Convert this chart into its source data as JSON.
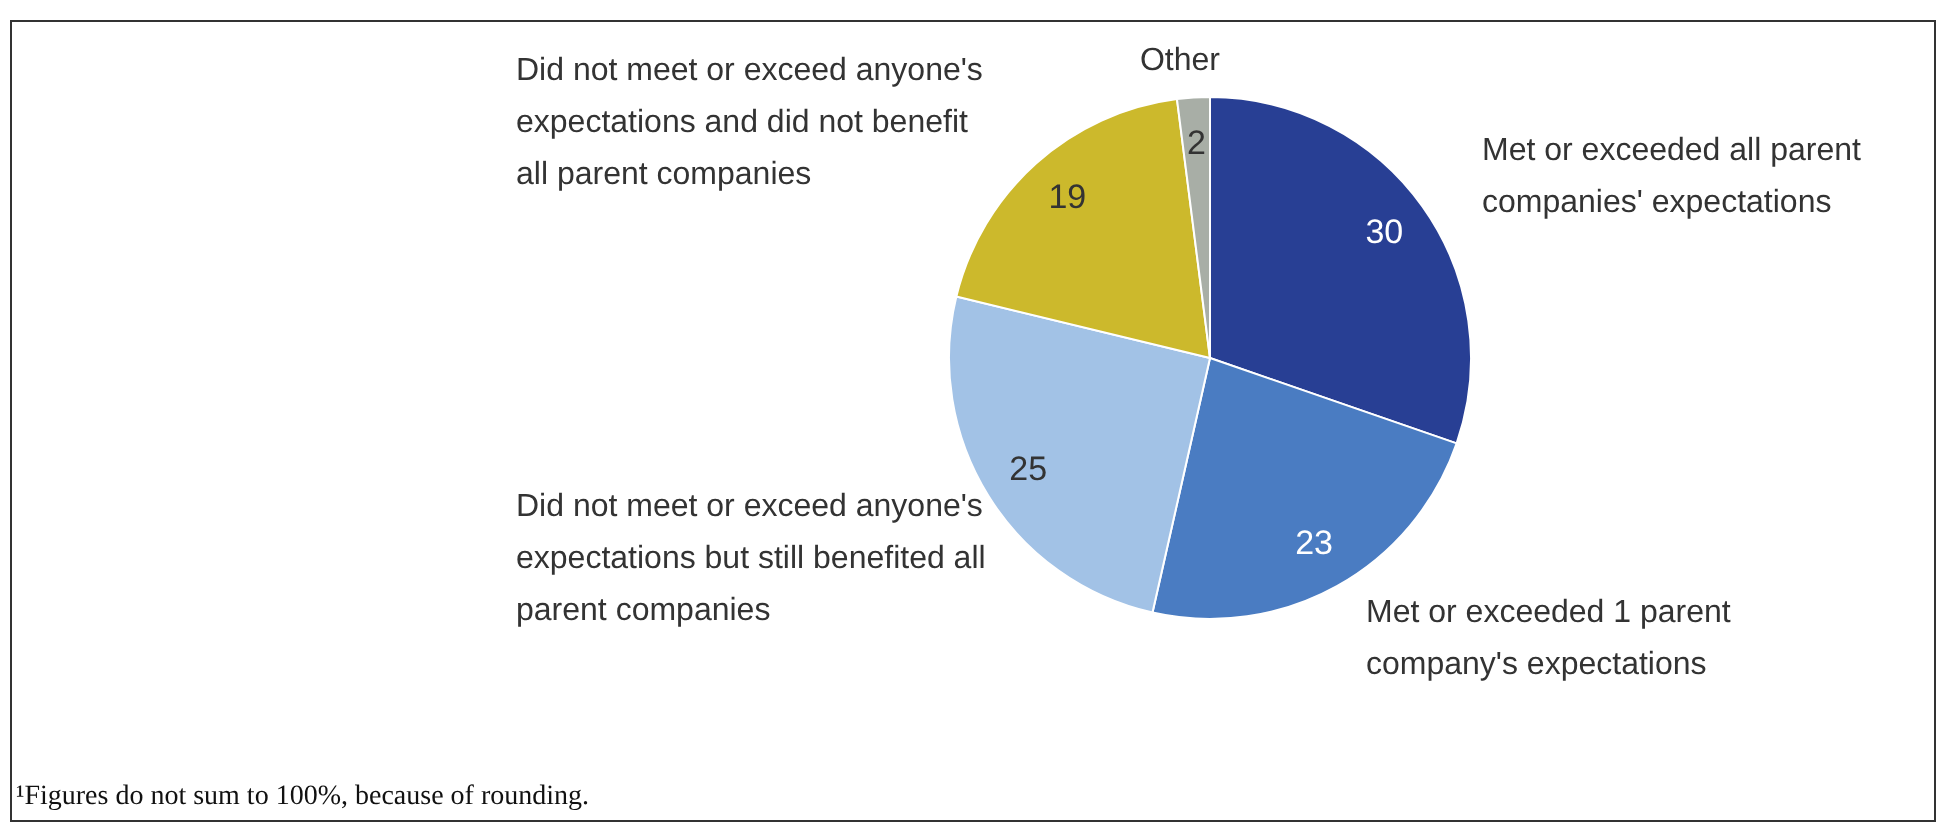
{
  "chart_data": {
    "type": "pie",
    "categories": [
      "Met or exceeded all parent companies' expectations",
      "Met or exceeded 1 parent company's expectations",
      "Did not meet or exceed anyone's expectations but still benefited all parent companies",
      "Did not meet or exceed anyone's expectations and did not benefit all parent companies",
      "Other"
    ],
    "values": [
      30,
      23,
      25,
      19,
      2
    ],
    "colors": [
      "#283f94",
      "#4a7cc2",
      "#a2c2e6",
      "#ccb92c",
      "#a8aea6"
    ],
    "data_labels": true,
    "legend": false,
    "annotations": [
      "¹Figures do not sum to 100%, because of rounding."
    ]
  }
}
